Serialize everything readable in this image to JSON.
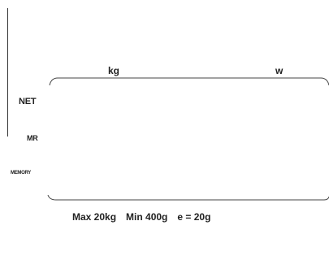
{
  "display": {
    "unit_kg": "kg",
    "unit_w": "w"
  },
  "indicators": {
    "net": "NET",
    "mr": "MR",
    "memory": "MEMORY"
  },
  "specs": {
    "max": "Max 20kg",
    "min": "Min 400g",
    "e": "e = 20g"
  }
}
